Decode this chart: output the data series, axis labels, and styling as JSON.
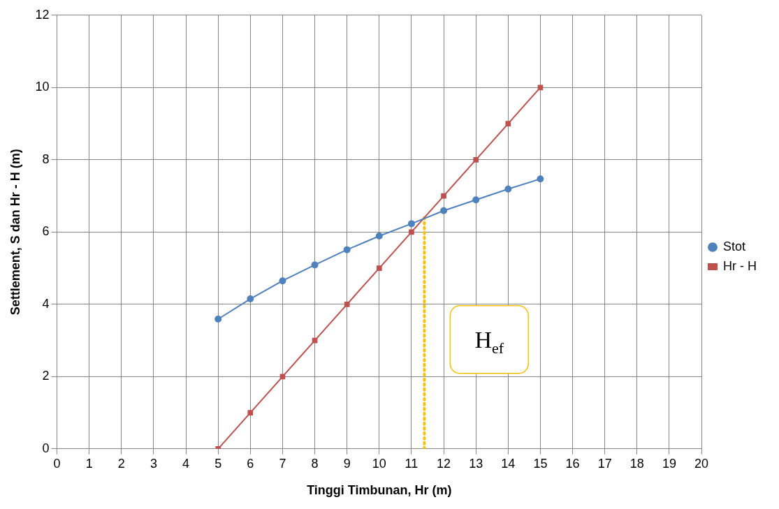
{
  "chart_data": {
    "type": "line",
    "xlabel": "Tinggi Timbunan, Hr (m)",
    "ylabel": "Settlement, S dan Hr - H (m)",
    "x": [
      5,
      6,
      7,
      8,
      9,
      10,
      11,
      12,
      13,
      14,
      15
    ],
    "series": [
      {
        "name": "Stot",
        "color": "#4f81bd",
        "marker": "circle",
        "values": [
          3.59,
          4.15,
          4.65,
          5.09,
          5.51,
          5.89,
          6.23,
          6.59,
          6.89,
          7.19,
          7.47
        ]
      },
      {
        "name": "Hr - H",
        "color": "#c0504d",
        "marker": "square",
        "values": [
          0,
          1,
          2,
          3,
          4,
          5,
          6,
          7,
          8,
          9,
          10
        ]
      },
      {
        "color": "#ffc000",
        "marker": "none",
        "line_style": "dotted",
        "x": [
          11.4,
          11.4
        ],
        "values": [
          0,
          6.4
        ]
      }
    ],
    "xlim": [
      0,
      20
    ],
    "xticks": [
      0,
      1,
      2,
      3,
      4,
      5,
      6,
      7,
      8,
      9,
      10,
      11,
      12,
      13,
      14,
      15,
      16,
      17,
      18,
      19,
      20
    ],
    "ylim": [
      0,
      12
    ],
    "yticks": [
      0,
      2,
      4,
      6,
      8,
      10,
      12
    ],
    "grid": true,
    "legend": "right",
    "annotations": [
      "H$_{ef}$"
    ]
  }
}
